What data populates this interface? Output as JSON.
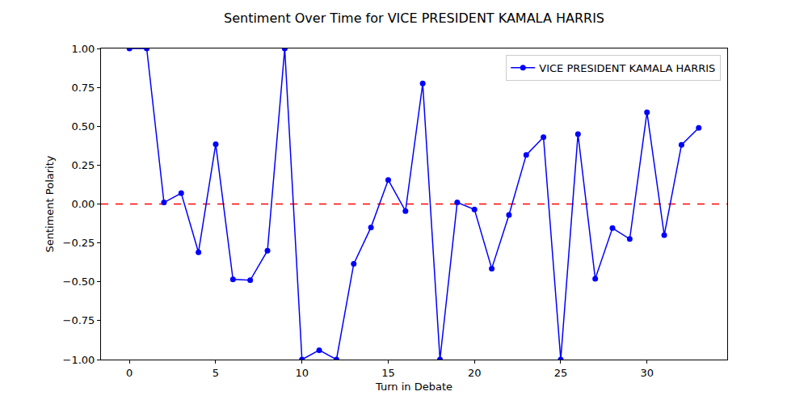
{
  "chart_data": {
    "type": "line",
    "title": "Sentiment Over Time for VICE PRESIDENT KAMALA HARRIS",
    "x_label": "Turn in Debate",
    "y_label": "Sentiment Polarity",
    "x": [
      0,
      1,
      2,
      3,
      4,
      5,
      6,
      7,
      8,
      9,
      10,
      11,
      12,
      13,
      14,
      15,
      16,
      17,
      18,
      19,
      20,
      21,
      22,
      23,
      24,
      25,
      26,
      27,
      28,
      29,
      30,
      31,
      32,
      33
    ],
    "series": [
      {
        "name": "VICE PRESIDENT KAMALA HARRIS",
        "color": "#0000ff",
        "marker": "circle",
        "line_style": "solid",
        "values": [
          1.0,
          1.0,
          0.01,
          0.07,
          -0.31,
          0.385,
          -0.485,
          -0.49,
          -0.3,
          1.0,
          -1.0,
          -0.94,
          -1.0,
          -0.385,
          -0.15,
          0.155,
          -0.045,
          0.775,
          -1.0,
          0.01,
          -0.035,
          -0.415,
          -0.07,
          0.315,
          0.43,
          -1.0,
          0.45,
          -0.48,
          -0.155,
          -0.225,
          0.59,
          -0.2,
          0.38,
          0.49
        ]
      }
    ],
    "hlines": [
      {
        "value": 0,
        "color": "#ff0000",
        "line_style": "dashed"
      }
    ],
    "xlim": [
      -1.65,
      34.65
    ],
    "xticks": [
      0,
      5,
      10,
      15,
      20,
      25,
      30
    ],
    "ylim": [
      -1,
      1
    ],
    "yticks": [
      {
        "value": -1,
        "label": "−1.00"
      },
      {
        "value": -0.75,
        "label": "−0.75"
      },
      {
        "value": -0.5,
        "label": "−0.50"
      },
      {
        "value": -0.25,
        "label": "−0.25"
      },
      {
        "value": 0,
        "label": "0.00"
      },
      {
        "value": 0.25,
        "label": "0.25"
      },
      {
        "value": 0.5,
        "label": "0.50"
      },
      {
        "value": 0.75,
        "label": "0.75"
      },
      {
        "value": 1,
        "label": "1.00"
      }
    ],
    "grid": false,
    "legend": "upper right"
  }
}
